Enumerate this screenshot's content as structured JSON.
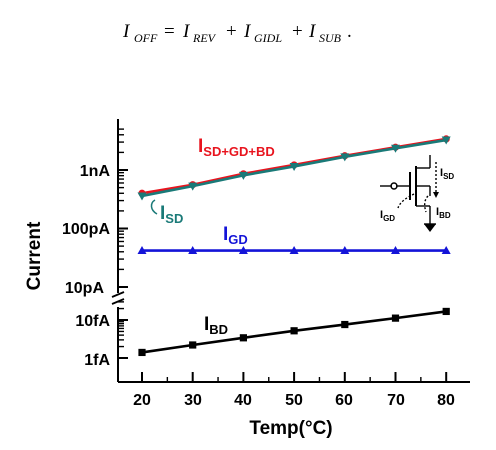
{
  "equation": {
    "lhs": "I",
    "lhs_sub": "OFF",
    "terms": [
      {
        "symbol": "I",
        "sub": "REV"
      },
      {
        "symbol": "I",
        "sub": "GIDL"
      },
      {
        "symbol": "I",
        "sub": "SUB"
      }
    ],
    "equals": "=",
    "plus": "+",
    "period": "."
  },
  "chart_data": {
    "type": "line",
    "xlabel": "Temp(°C)",
    "ylabel": "Current",
    "x": [
      20,
      30,
      40,
      50,
      60,
      70,
      80
    ],
    "x_ticks": [
      "20",
      "30",
      "40",
      "50",
      "60",
      "70",
      "80"
    ],
    "xlim": [
      15,
      85
    ],
    "y_scale": "log",
    "y_broken": true,
    "upper_y_ticks": [
      "1nA",
      "100pA",
      "10pA"
    ],
    "lower_y_ticks": [
      "10fA",
      "1fA"
    ],
    "series": [
      {
        "name": "I",
        "sub": "SD+GD+BD",
        "color": "#e8141e",
        "marker": "circle",
        "values_A": [
          4e-10,
          5.6e-10,
          8.6e-10,
          1.22e-09,
          1.75e-09,
          2.45e-09,
          3.4e-09
        ]
      },
      {
        "name": "I",
        "sub": "SD",
        "color": "#1a7a78",
        "marker": "triangle-down",
        "values_A": [
          3.6e-10,
          5.3e-10,
          8.1e-10,
          1.15e-09,
          1.68e-09,
          2.35e-09,
          3.25e-09
        ]
      },
      {
        "name": "I",
        "sub": "GD",
        "color": "#1414d8",
        "marker": "triangle-up",
        "values_A": [
          4.2e-11,
          4.2e-11,
          4.2e-11,
          4.2e-11,
          4.2e-11,
          4.2e-11,
          4.2e-11
        ]
      },
      {
        "name": "I",
        "sub": "BD",
        "color": "#000000",
        "marker": "square",
        "values_A": [
          1.4e-15,
          2.2e-15,
          3.4e-15,
          5.2e-15,
          7.6e-15,
          1.12e-14,
          1.68e-14
        ]
      }
    ],
    "inset_labels": [
      {
        "symbol": "I",
        "sub": "SD"
      },
      {
        "symbol": "I",
        "sub": "GD"
      },
      {
        "symbol": "I",
        "sub": "BD"
      }
    ],
    "grid": false,
    "legend": "inline labels"
  }
}
